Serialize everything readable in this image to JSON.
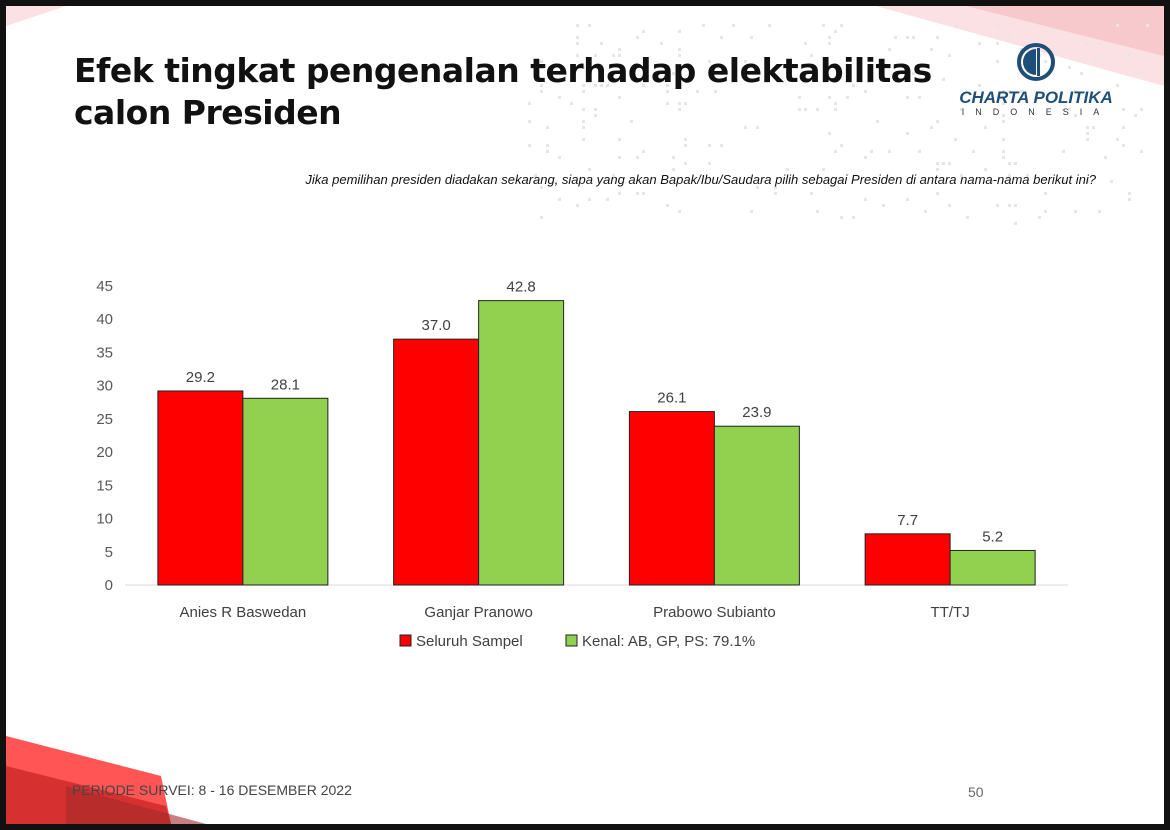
{
  "slide": {
    "title": "Efek tingkat pengenalan terhadap elektabilitas calon Presiden",
    "subtitle": "Jika pemilihan presiden diadakan sekarang, siapa yang akan Bapak/Ibu/Saudara pilih sebagai Presiden di antara nama-nama berikut ini?",
    "footer": "PERIODE SURVEI: 8 - 16 DESEMBER 2022",
    "page_number": "50",
    "logo": {
      "name": "CHARTA POLITIKA",
      "sub": "INDONESIA",
      "color": "#1f4e79"
    }
  },
  "chart_data": {
    "type": "bar",
    "categories": [
      "Anies R Baswedan",
      "Ganjar Pranowo",
      "Prabowo Subianto",
      "TT/TJ"
    ],
    "series": [
      {
        "name": "Seluruh Sampel",
        "values": [
          29.2,
          37.0,
          26.1,
          7.7
        ],
        "color": "#ff0000"
      },
      {
        "name": "Kenal: AB, GP, PS: 79.1%",
        "values": [
          28.1,
          42.8,
          23.9,
          5.2
        ],
        "color": "#92d050"
      }
    ],
    "ylim": [
      0,
      45
    ],
    "yticks": [
      0,
      5,
      10,
      15,
      20,
      25,
      30,
      35,
      40,
      45
    ],
    "grid": false,
    "legend": "bottom",
    "data_labels": true
  }
}
